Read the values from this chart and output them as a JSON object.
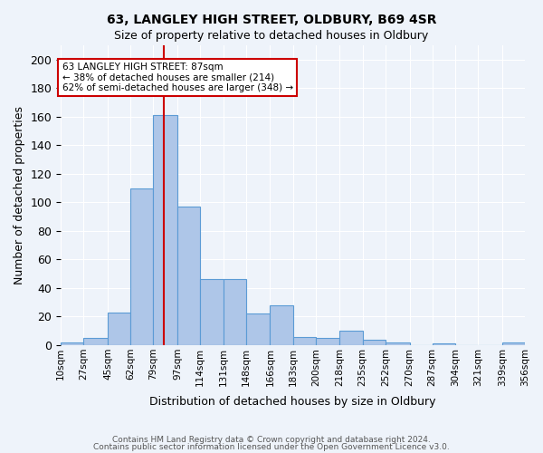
{
  "title1": "63, LANGLEY HIGH STREET, OLDBURY, B69 4SR",
  "title2": "Size of property relative to detached houses in Oldbury",
  "xlabel": "Distribution of detached houses by size in Oldbury",
  "ylabel": "Number of detached properties",
  "footnote1": "Contains HM Land Registry data © Crown copyright and database right 2024.",
  "footnote2": "Contains public sector information licensed under the Open Government Licence v3.0.",
  "bin_labels": [
    "10sqm",
    "27sqm",
    "45sqm",
    "62sqm",
    "79sqm",
    "97sqm",
    "114sqm",
    "131sqm",
    "148sqm",
    "166sqm",
    "183sqm",
    "200sqm",
    "218sqm",
    "235sqm",
    "252sqm",
    "270sqm",
    "287sqm",
    "304sqm",
    "321sqm",
    "339sqm",
    "356sqm"
  ],
  "bar_values": [
    2,
    5,
    23,
    110,
    161,
    97,
    46,
    46,
    22,
    28,
    6,
    5,
    10,
    4,
    2,
    0,
    1,
    0,
    0,
    2
  ],
  "bar_color": "#aec6e8",
  "bar_edgecolor": "#5b9bd5",
  "bg_color": "#eef3fa",
  "grid_color": "#ffffff",
  "vline_x": 87,
  "vline_color": "#cc0000",
  "annotation_title": "63 LANGLEY HIGH STREET: 87sqm",
  "annotation_line2": "← 38% of detached houses are smaller (214)",
  "annotation_line3": "62% of semi-detached houses are larger (348) →",
  "annotation_box_color": "#ffffff",
  "annotation_box_edgecolor": "#cc0000",
  "ylim": [
    0,
    210
  ],
  "yticks": [
    0,
    20,
    40,
    60,
    80,
    100,
    120,
    140,
    160,
    180,
    200
  ],
  "bin_edges": [
    10,
    27,
    45,
    62,
    79,
    97,
    114,
    131,
    148,
    166,
    183,
    200,
    218,
    235,
    252,
    270,
    287,
    304,
    321,
    339,
    356
  ]
}
